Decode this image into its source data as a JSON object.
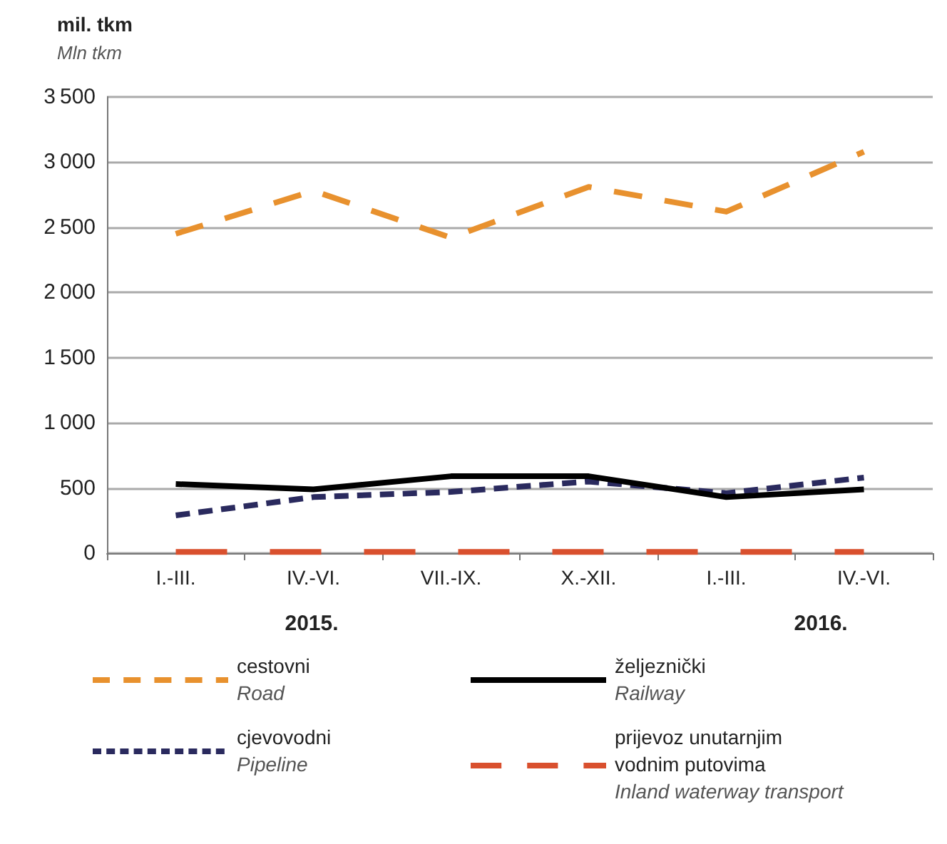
{
  "chart_data": {
    "type": "line",
    "ylabel": "mil. tkm\nMln tkm",
    "categories": [
      "I.-III.",
      "IV.-VI.",
      "VII.-IX.",
      "X.-XII.",
      "I.-III.",
      "IV.-VI."
    ],
    "annotations": [
      "2015.",
      "2016."
    ],
    "series": [
      {
        "name": "cestovni\nRoad",
        "color": "#e8912e",
        "line_style": "dashed",
        "values": [
          2450,
          2780,
          2420,
          2810,
          2620,
          3080
        ]
      },
      {
        "name": "željeznički\nRailway",
        "color": "#000000",
        "line_style": "solid",
        "values": [
          530,
          490,
          590,
          590,
          430,
          490
        ]
      },
      {
        "name": "cjevovodni\nPipeline",
        "color": "#2a2a5e",
        "line_style": "dashed",
        "values": [
          290,
          430,
          470,
          550,
          460,
          580
        ]
      },
      {
        "name": "prijevoz unutarnjim\nvodnim putovima\nInland waterway transport",
        "color": "#d9502e",
        "line_style": "dashed",
        "values": [
          10,
          10,
          10,
          10,
          10,
          10
        ]
      }
    ],
    "ylim": [
      0,
      3500
    ],
    "yticks": [
      0,
      500,
      1000,
      1500,
      2000,
      2500,
      3000,
      3500
    ],
    "grid": "y",
    "marker": "none",
    "legend": "bottom"
  }
}
